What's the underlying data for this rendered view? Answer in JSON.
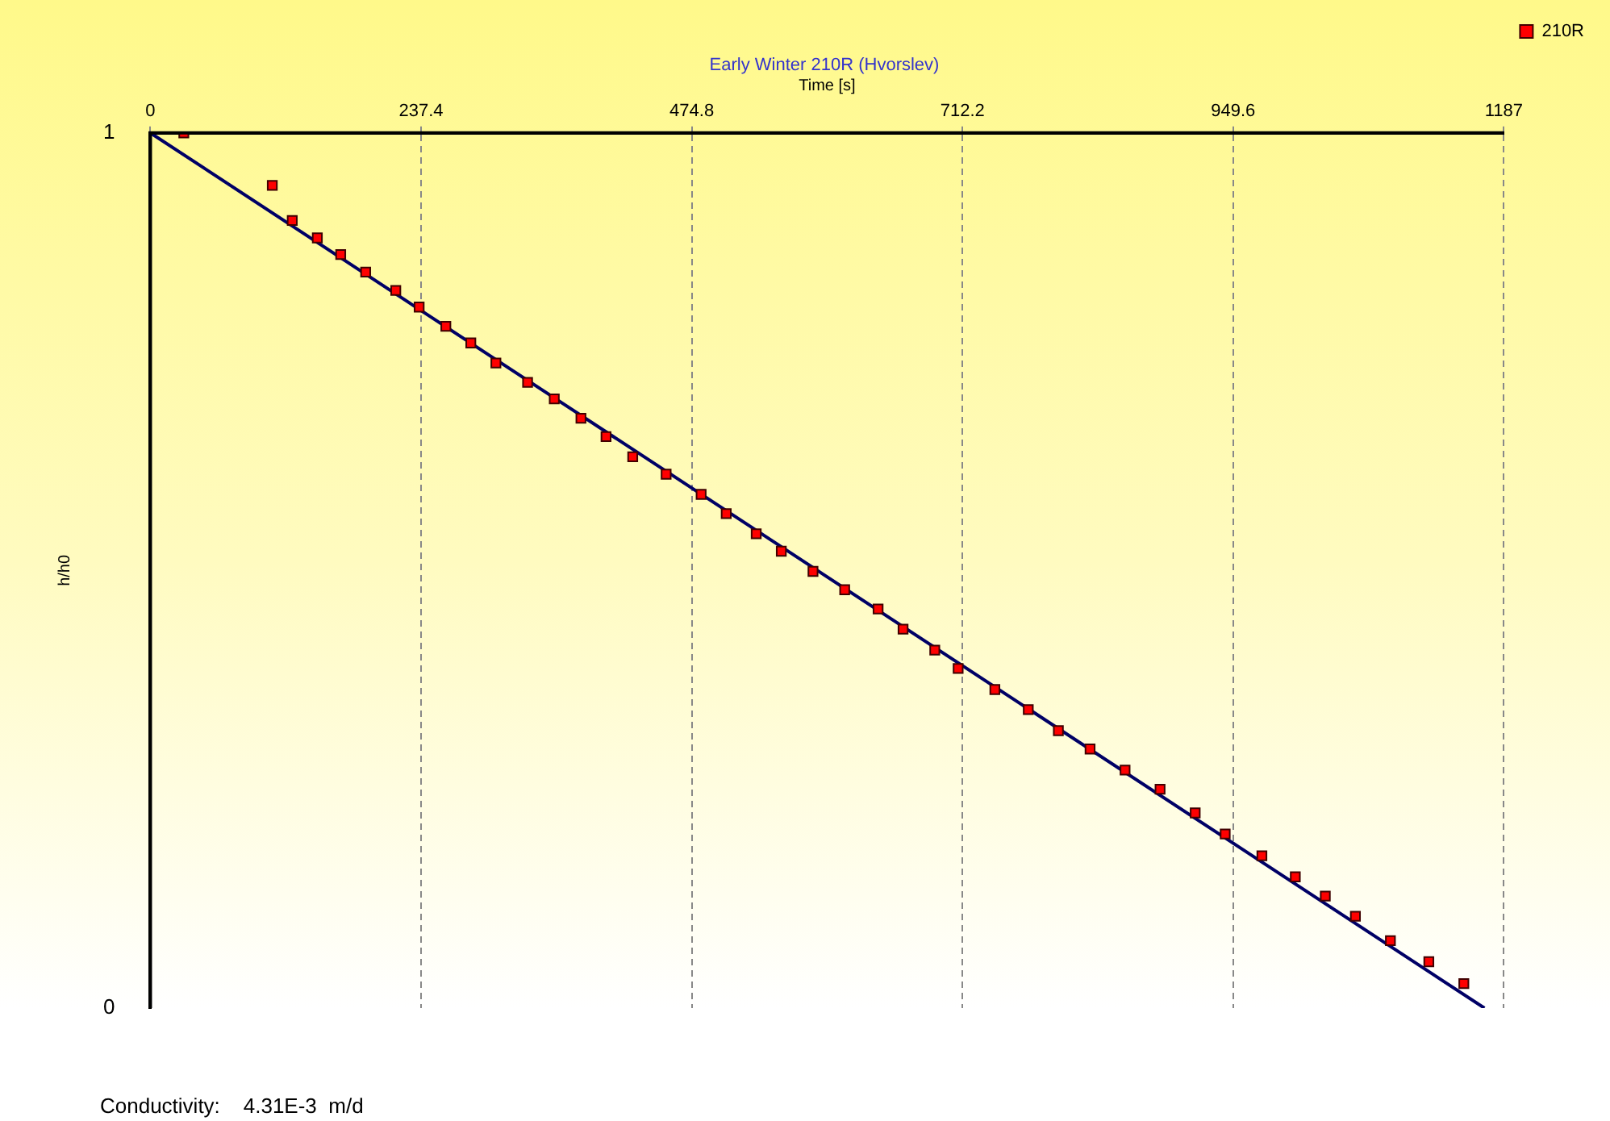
{
  "chart_data": {
    "type": "scatter",
    "title": "Early Winter 210R (Hvorslev)",
    "xlabel": "Time [s]",
    "ylabel": "h/h0",
    "xlim": [
      0,
      1187
    ],
    "xticks": [
      0,
      237.4,
      474.8,
      712.2,
      949.6,
      1187
    ],
    "ylim": [
      0,
      1
    ],
    "yticks": [
      0,
      1
    ],
    "grid": "x",
    "legend": "top right",
    "annotations": [
      "Conductivity:    4.31E-3  m/d"
    ],
    "series": [
      {
        "name": "210R",
        "marker": "square",
        "color": "#ff0000",
        "x": [
          29.3,
          106.9,
          124.4,
          146.4,
          166.9,
          188.8,
          215.2,
          235.7,
          259.1,
          281.0,
          303.0,
          330.8,
          354.2,
          377.6,
          399.6,
          423.0,
          452.3,
          483.0,
          505.0,
          531.3,
          553.3,
          581.1,
          608.9,
          638.2,
          660.1,
          687.9,
          708.4,
          740.6,
          769.9,
          796.3,
          824.1,
          854.8,
          885.5,
          916.3,
          942.6,
          974.8,
          1004.1,
          1030.4,
          1056.8,
          1087.5,
          1121.2,
          1151.9
        ],
        "values": [
          1.0,
          0.94,
          0.9,
          0.88,
          0.861,
          0.841,
          0.82,
          0.801,
          0.779,
          0.76,
          0.737,
          0.715,
          0.696,
          0.674,
          0.653,
          0.63,
          0.61,
          0.587,
          0.565,
          0.542,
          0.522,
          0.499,
          0.478,
          0.456,
          0.433,
          0.409,
          0.388,
          0.364,
          0.341,
          0.317,
          0.296,
          0.272,
          0.25,
          0.223,
          0.199,
          0.174,
          0.15,
          0.128,
          0.105,
          0.077,
          0.053,
          0.028
        ]
      },
      {
        "type": "line",
        "marker": "none",
        "color": "#000066",
        "x": [
          0,
          1170
        ],
        "values": [
          1,
          0
        ]
      }
    ]
  }
}
